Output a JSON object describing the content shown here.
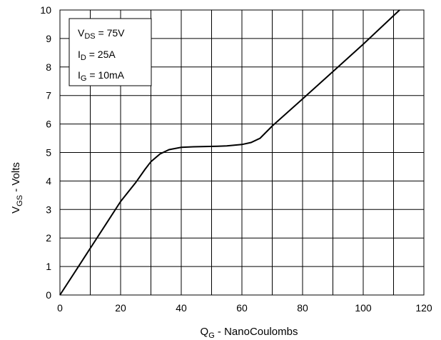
{
  "chart_data": {
    "type": "line",
    "xlabel": {
      "main": "Q",
      "sub": "G",
      "rest": " - NanoCoulombs"
    },
    "ylabel": {
      "main": "V",
      "sub": "GS",
      "rest": " - Volts"
    },
    "xlim": [
      0,
      120
    ],
    "ylim": [
      0,
      10
    ],
    "x_ticks": [
      0,
      20,
      40,
      60,
      80,
      100,
      120
    ],
    "y_ticks": [
      0,
      1,
      2,
      3,
      4,
      5,
      6,
      7,
      8,
      9,
      10
    ],
    "grid": {
      "x_step": 10,
      "y_step": 1
    },
    "series": [
      {
        "x": [
          0,
          5,
          10,
          15,
          20,
          25,
          28,
          30,
          33,
          36,
          40,
          44,
          48,
          52,
          55,
          60,
          63,
          66,
          70,
          80,
          90,
          100,
          112
        ],
        "y": [
          0,
          0.82,
          1.64,
          2.46,
          3.28,
          3.95,
          4.4,
          4.68,
          4.95,
          5.1,
          5.18,
          5.2,
          5.21,
          5.22,
          5.23,
          5.28,
          5.35,
          5.5,
          5.93,
          6.88,
          7.84,
          8.8,
          10.0
        ]
      }
    ],
    "legend": {
      "lines": [
        {
          "main": "V",
          "sub": "DS",
          "rest": " = 75V"
        },
        {
          "main": "I",
          "sub": "D",
          "rest": " = 25A"
        },
        {
          "main": "I",
          "sub": "G",
          "rest": " = 10mA"
        }
      ],
      "placement": "top-left"
    }
  }
}
